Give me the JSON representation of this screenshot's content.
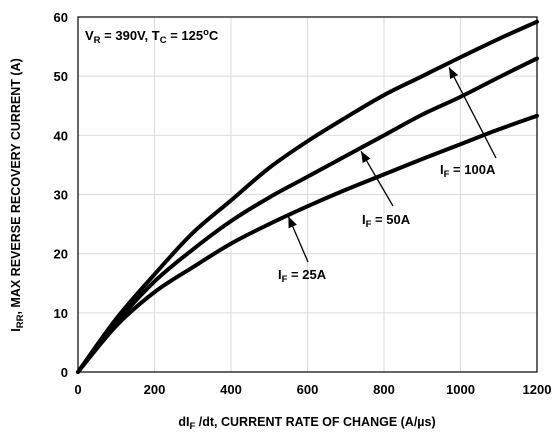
{
  "chart_data": {
    "type": "line",
    "condition": {
      "vr": "V",
      "vr_sub": "R",
      "vr_val": " = 390V, ",
      "tc": "T",
      "tc_sub": "C",
      "tc_val": " = 125",
      "tc_sup": "o",
      "tc_unit": "C"
    },
    "xlabel": {
      "pre": "dI",
      "sub": "F",
      "post": " /dt, CURRENT RATE OF CHANGE (A/µs)"
    },
    "ylabel": {
      "pre": "I",
      "sub": "RR",
      "post": ", MAX REVERSE RECOVERY CURRENT (A)"
    },
    "xlim": [
      0,
      1200
    ],
    "ylim": [
      0,
      60
    ],
    "xticks": [
      0,
      200,
      400,
      600,
      800,
      1000,
      1200
    ],
    "yticks": [
      0,
      10,
      20,
      30,
      40,
      50,
      60
    ],
    "grid": true,
    "series": [
      {
        "name": "I_F = 100A",
        "label": {
          "pre": "I",
          "sub": "F",
          "post": " = 100A"
        },
        "x": [
          0,
          100,
          200,
          300,
          400,
          500,
          600,
          700,
          800,
          900,
          1000,
          1100,
          1200
        ],
        "y": [
          0,
          9,
          16.5,
          23.5,
          29,
          34.5,
          39,
          43,
          46.8,
          50,
          53.2,
          56.3,
          59.2
        ],
        "callout_target": [
          970,
          51.5
        ]
      },
      {
        "name": "I_F = 50A",
        "label": {
          "pre": "I",
          "sub": "F",
          "post": " = 50A"
        },
        "x": [
          0,
          100,
          200,
          300,
          400,
          500,
          600,
          700,
          800,
          900,
          1000,
          1100,
          1200
        ],
        "y": [
          0,
          8.3,
          15.3,
          20.7,
          25.5,
          29.5,
          33,
          36.5,
          40,
          43.5,
          46.5,
          49.8,
          53
        ],
        "callout_target": [
          740,
          37.3
        ]
      },
      {
        "name": "I_F = 25A",
        "label": {
          "pre": "I",
          "sub": "F",
          "post": " = 25A"
        },
        "x": [
          0,
          100,
          200,
          300,
          400,
          500,
          600,
          700,
          800,
          900,
          1000,
          1100,
          1200
        ],
        "y": [
          0,
          7.8,
          13.5,
          17.7,
          21.7,
          25,
          28,
          30.8,
          33.4,
          36,
          38.5,
          41,
          43.3
        ],
        "callout_target": [
          550,
          26.3
        ]
      }
    ]
  }
}
